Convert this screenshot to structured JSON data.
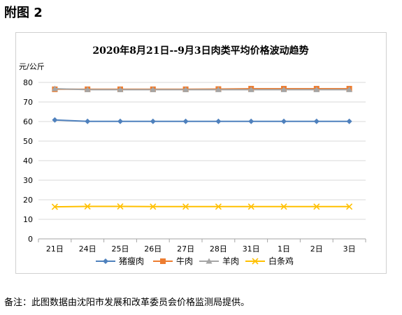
{
  "page": {
    "heading": "附图 2",
    "footnote": "备注：此图数据由沈阳市发展和改革委员会价格监测局提供。"
  },
  "chart_data": {
    "type": "line",
    "title": "2020年8月21日--9月3日肉类平均价格波动趋势",
    "ylabel": "元/公斤",
    "xlabel": "",
    "ylim": [
      0,
      80
    ],
    "yticks": [
      0,
      10,
      20,
      30,
      40,
      50,
      60,
      70,
      80
    ],
    "grid": true,
    "legend": "bottom",
    "categories": [
      "21日",
      "24日",
      "25日",
      "26日",
      "27日",
      "28日",
      "31日",
      "1日",
      "2日",
      "3日"
    ],
    "series": [
      {
        "name": "猪瘦肉",
        "color": "#4f81bd",
        "marker": "diamond",
        "values": [
          60.8,
          60.1,
          60.1,
          60.1,
          60.1,
          60.1,
          60.1,
          60.1,
          60.1,
          60.1
        ]
      },
      {
        "name": "牛肉",
        "color": "#ed7d31",
        "marker": "square",
        "values": [
          76.5,
          76.5,
          76.5,
          76.5,
          76.5,
          76.6,
          76.8,
          76.8,
          76.8,
          76.8
        ]
      },
      {
        "name": "羊肉",
        "color": "#a5a5a5",
        "marker": "triangle",
        "values": [
          76.8,
          76.3,
          76.3,
          76.3,
          76.3,
          76.3,
          76.3,
          76.3,
          76.3,
          76.3
        ]
      },
      {
        "name": "白条鸡",
        "color": "#ffc000",
        "marker": "x",
        "values": [
          16.4,
          16.6,
          16.6,
          16.5,
          16.5,
          16.5,
          16.5,
          16.5,
          16.5,
          16.5
        ]
      }
    ]
  }
}
